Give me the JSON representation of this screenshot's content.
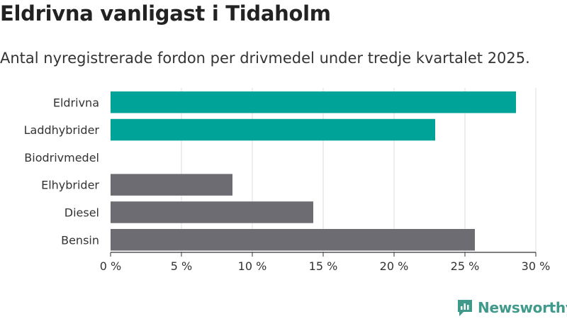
{
  "title": "Eldrivna vanligast i Tidaholm",
  "subtitle": "Antal nyregistrerade fordon per drivmedel under tredje kvartalet 2025.",
  "brand": {
    "name": "Newsworthy",
    "color": "#3f9a8c",
    "icon": "newsworthy-logo-icon"
  },
  "colors": {
    "highlight": "#00a398",
    "default": "#6d6c73",
    "grid": "#dddddd",
    "axis": "#333333"
  },
  "chart_data": {
    "type": "bar",
    "orientation": "horizontal",
    "categories": [
      "Eldrivna",
      "Laddhybrider",
      "Biodrivmedel",
      "Elhybrider",
      "Diesel",
      "Bensin"
    ],
    "values": [
      28.6,
      22.9,
      0,
      8.6,
      14.3,
      25.7
    ],
    "bar_colors": [
      "#00a398",
      "#00a398",
      "#00a398",
      "#6d6c73",
      "#6d6c73",
      "#6d6c73"
    ],
    "xlim": [
      0,
      30
    ],
    "xticks": [
      0,
      5,
      10,
      15,
      20,
      25,
      30
    ],
    "xtick_labels": [
      "0 %",
      "5 %",
      "10 %",
      "15 %",
      "20 %",
      "25 %",
      "30 %"
    ],
    "title": "Eldrivna vanligast i Tidaholm",
    "subtitle": "Antal nyregistrerade fordon per drivmedel under tredje kvartalet 2025.",
    "xlabel": "",
    "ylabel": "",
    "grid": true,
    "legend": false
  }
}
